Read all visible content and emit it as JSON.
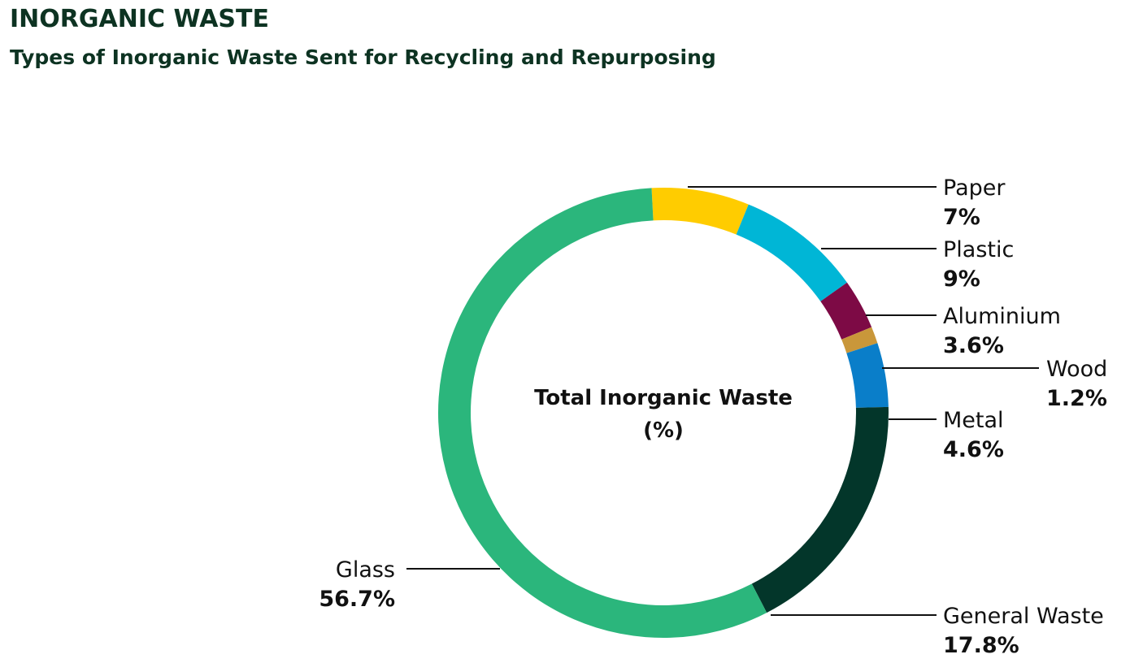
{
  "header": {
    "title": "INORGANIC WASTE",
    "subtitle": "Types of Inorganic Waste Sent for Recycling and Repurposing"
  },
  "chart_data": {
    "type": "pie",
    "variant": "donut",
    "center_label_line1": "Total Inorganic Waste",
    "center_label_line2": "(%)",
    "slices": [
      {
        "label": "Paper",
        "value": 7,
        "value_text": "7%",
        "color": "#ffcc00"
      },
      {
        "label": "Plastic",
        "value": 9,
        "value_text": "9%",
        "color": "#00b6d6"
      },
      {
        "label": "Aluminium",
        "value": 3.6,
        "value_text": "3.6%",
        "color": "#7d0a45"
      },
      {
        "label": "Wood",
        "value": 1.2,
        "value_text": "1.2%",
        "color": "#c9973a"
      },
      {
        "label": "Metal",
        "value": 4.6,
        "value_text": "4.6%",
        "color": "#0a7ec9"
      },
      {
        "label": "General Waste",
        "value": 17.8,
        "value_text": "17.8%",
        "color": "#03362a"
      },
      {
        "label": "Glass",
        "value": 56.7,
        "value_text": "56.7%",
        "color": "#2bb67c"
      }
    ]
  }
}
